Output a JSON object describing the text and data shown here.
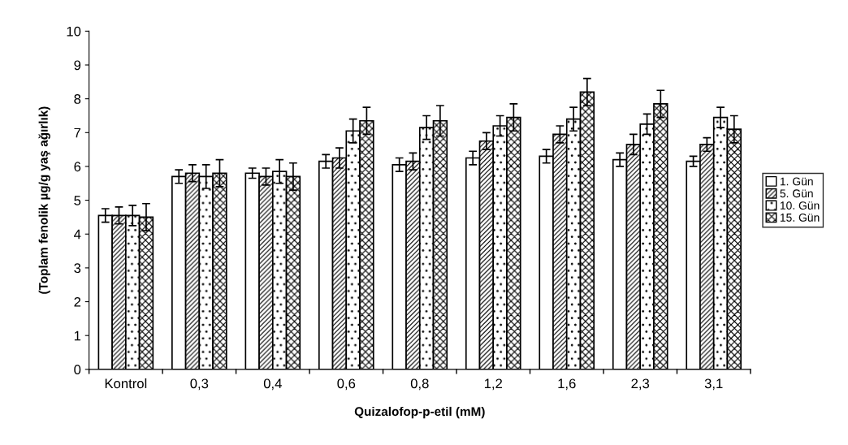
{
  "chart_data": {
    "type": "bar",
    "xlabel": "Quizalofop-p-etil (mM)",
    "ylabel": "(Toplam fenolik µg/g yaş ağırlık)",
    "categories": [
      "Kontrol",
      "0,3",
      "0,4",
      "0,6",
      "0,8",
      "1,2",
      "1,6",
      "2,3",
      "3,1"
    ],
    "series": [
      {
        "name": "1. Gün",
        "color": "#ffffff",
        "values": [
          4.55,
          5.7,
          5.8,
          6.15,
          6.05,
          6.25,
          6.3,
          6.2,
          6.15
        ],
        "errors": [
          0.2,
          0.2,
          0.15,
          0.2,
          0.2,
          0.2,
          0.2,
          0.2,
          0.15
        ]
      },
      {
        "name": "5. Gün",
        "color": "#000000",
        "values": [
          4.55,
          5.8,
          5.7,
          6.25,
          6.15,
          6.75,
          6.95,
          6.65,
          6.65
        ],
        "errors": [
          0.25,
          0.25,
          0.25,
          0.3,
          0.25,
          0.25,
          0.25,
          0.3,
          0.2
        ]
      },
      {
        "name": "10. Gün",
        "color": "#000000",
        "values": [
          4.55,
          5.7,
          5.85,
          7.05,
          7.15,
          7.2,
          7.4,
          7.25,
          7.45
        ],
        "errors": [
          0.3,
          0.35,
          0.35,
          0.35,
          0.35,
          0.3,
          0.35,
          0.3,
          0.3
        ]
      },
      {
        "name": "15. Gün",
        "color": "#000000",
        "values": [
          4.5,
          5.8,
          5.7,
          7.35,
          7.35,
          7.45,
          8.2,
          7.85,
          7.1
        ],
        "errors": [
          0.4,
          0.4,
          0.4,
          0.4,
          0.45,
          0.4,
          0.4,
          0.4,
          0.4
        ]
      }
    ],
    "ylim": [
      0,
      10
    ],
    "yticks": [
      0,
      1,
      2,
      3,
      4,
      5,
      6,
      7,
      8,
      9,
      10
    ],
    "grid": false,
    "legend": "right"
  }
}
